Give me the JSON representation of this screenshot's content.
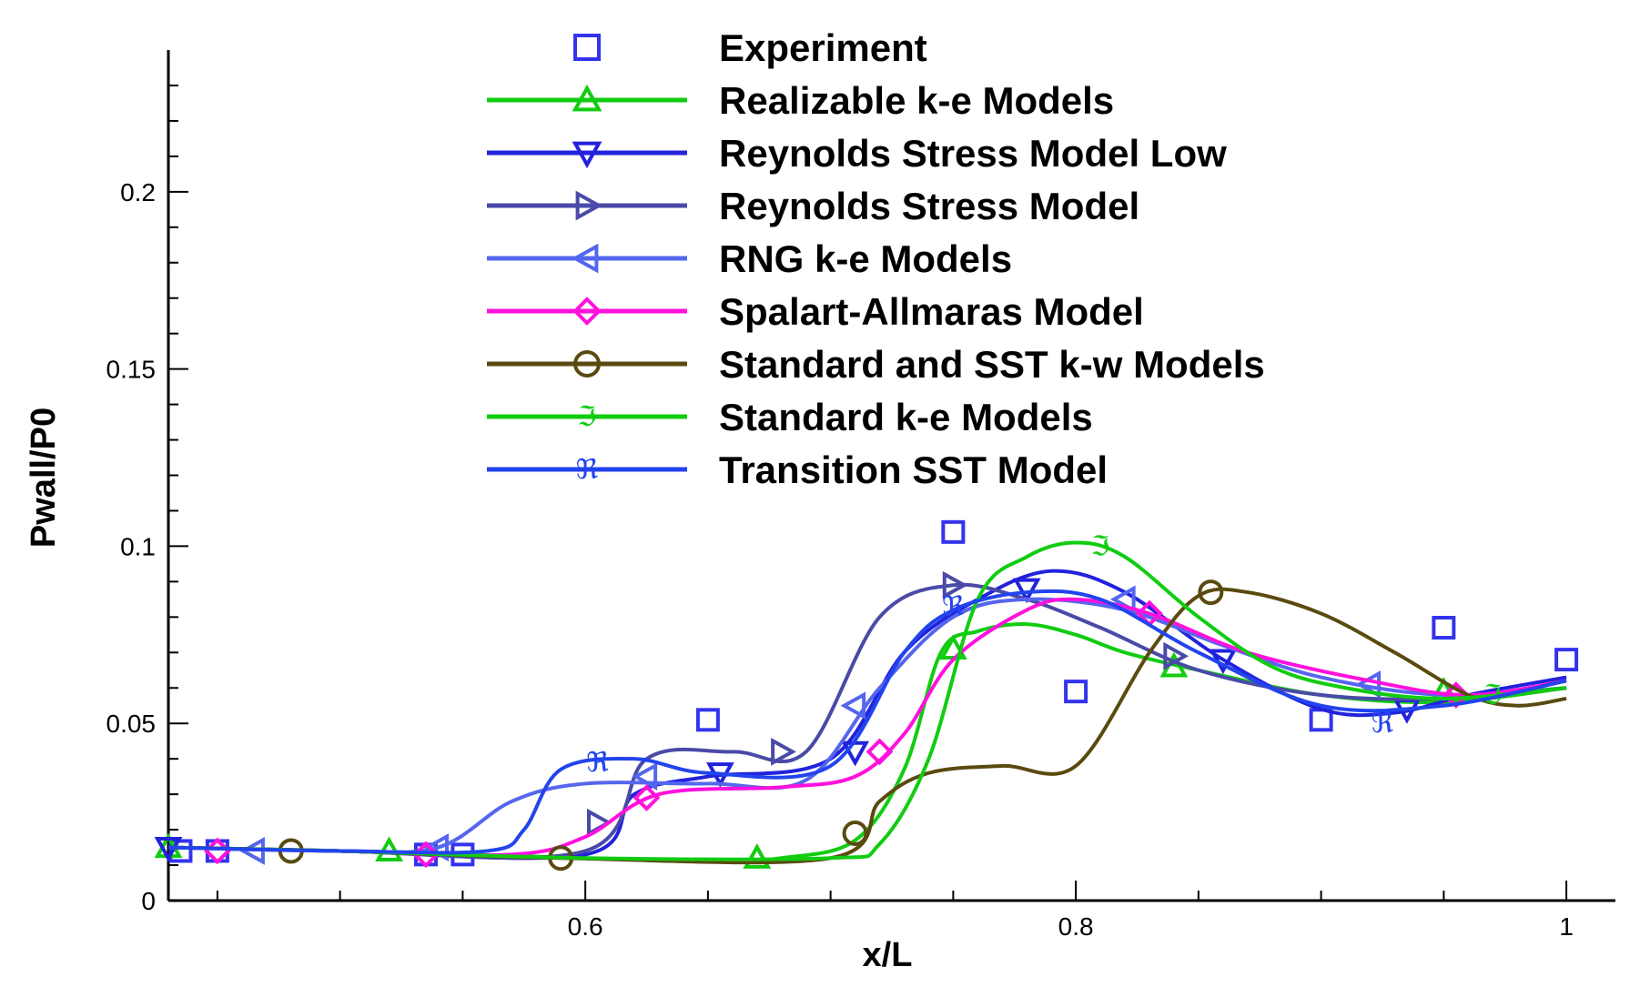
{
  "chart_data": {
    "type": "line",
    "xlabel": "x/L",
    "ylabel": "Pwall/P0",
    "xlim": [
      0.43,
      1.02
    ],
    "ylim": [
      0,
      0.24
    ],
    "x_ticks": [
      0.6,
      0.8,
      1
    ],
    "x_tick_labels": [
      "0.6",
      "0.8",
      "1"
    ],
    "y_ticks": [
      0,
      0.05,
      0.1,
      0.15,
      0.2
    ],
    "y_tick_labels": [
      "0",
      "0.05",
      "0.1",
      "0.15",
      "0.2"
    ],
    "legend_position": "top-center",
    "grid": false,
    "series": [
      {
        "name": "Experiment",
        "color": "#3333ee",
        "marker": "square",
        "line": false,
        "x": [
          0.435,
          0.45,
          0.535,
          0.55,
          0.65,
          0.75,
          0.8,
          0.9,
          0.95,
          1.0
        ],
        "y": [
          0.014,
          0.014,
          0.013,
          0.013,
          0.051,
          0.104,
          0.059,
          0.051,
          0.077,
          0.068
        ]
      },
      {
        "name": "Realizable k-e  Models",
        "color": "#11cc11",
        "marker": "triangle-up",
        "x": [
          0.43,
          0.5,
          0.6,
          0.65,
          0.68,
          0.71,
          0.73,
          0.745,
          0.76,
          0.78,
          0.8,
          0.82,
          0.85,
          0.9,
          0.95,
          1.0
        ],
        "y": [
          0.015,
          0.014,
          0.012,
          0.011,
          0.012,
          0.017,
          0.037,
          0.07,
          0.076,
          0.078,
          0.075,
          0.07,
          0.065,
          0.058,
          0.056,
          0.06
        ],
        "marker_x": [
          0.43,
          0.52,
          0.67,
          0.75,
          0.84,
          0.95
        ],
        "marker_y": [
          0.015,
          0.014,
          0.012,
          0.071,
          0.066,
          0.059
        ]
      },
      {
        "name": "Reynolds Stress Model Low",
        "color": "#2222dd",
        "marker": "triangle-down",
        "x": [
          0.43,
          0.5,
          0.6,
          0.62,
          0.65,
          0.7,
          0.73,
          0.76,
          0.79,
          0.82,
          0.86,
          0.9,
          0.93,
          0.96,
          1.0
        ],
        "y": [
          0.015,
          0.014,
          0.013,
          0.03,
          0.035,
          0.04,
          0.07,
          0.085,
          0.093,
          0.087,
          0.068,
          0.054,
          0.053,
          0.058,
          0.063
        ],
        "marker_x": [
          0.43,
          0.655,
          0.71,
          0.78,
          0.86,
          0.935
        ],
        "marker_y": [
          0.015,
          0.036,
          0.042,
          0.088,
          0.068,
          0.054
        ]
      },
      {
        "name": "Reynolds Stress Model",
        "color": "#4a4aa8",
        "marker": "triangle-right",
        "x": [
          0.43,
          0.5,
          0.6,
          0.625,
          0.66,
          0.69,
          0.72,
          0.75,
          0.78,
          0.81,
          0.85,
          0.9,
          0.95,
          1.0
        ],
        "y": [
          0.015,
          0.014,
          0.014,
          0.04,
          0.042,
          0.042,
          0.08,
          0.089,
          0.085,
          0.077,
          0.065,
          0.058,
          0.057,
          0.06
        ],
        "marker_x": [
          0.605,
          0.68,
          0.75,
          0.84
        ],
        "marker_y": [
          0.022,
          0.042,
          0.089,
          0.069
        ]
      },
      {
        "name": "RNG k-e Models",
        "color": "#5566ee",
        "marker": "triangle-left",
        "x": [
          0.43,
          0.5,
          0.54,
          0.57,
          0.6,
          0.65,
          0.69,
          0.72,
          0.75,
          0.78,
          0.82,
          0.86,
          0.9,
          0.95,
          1.0
        ],
        "y": [
          0.015,
          0.014,
          0.015,
          0.028,
          0.033,
          0.033,
          0.034,
          0.06,
          0.08,
          0.085,
          0.082,
          0.072,
          0.063,
          0.058,
          0.06
        ],
        "marker_x": [
          0.465,
          0.54,
          0.625,
          0.71,
          0.82,
          0.92
        ],
        "marker_y": [
          0.014,
          0.015,
          0.035,
          0.055,
          0.085,
          0.061
        ]
      },
      {
        "name": "Spalart-Allmaras Model",
        "color": "#ff11dd",
        "marker": "diamond",
        "x": [
          0.43,
          0.5,
          0.57,
          0.6,
          0.63,
          0.68,
          0.71,
          0.73,
          0.75,
          0.78,
          0.8,
          0.83,
          0.87,
          0.92,
          0.96,
          1.0
        ],
        "y": [
          0.015,
          0.014,
          0.013,
          0.018,
          0.03,
          0.032,
          0.035,
          0.047,
          0.068,
          0.082,
          0.085,
          0.081,
          0.07,
          0.062,
          0.058,
          0.062
        ],
        "marker_x": [
          0.45,
          0.535,
          0.625,
          0.72,
          0.83,
          0.955
        ],
        "marker_y": [
          0.014,
          0.013,
          0.029,
          0.042,
          0.081,
          0.058
        ]
      },
      {
        "name": "Standard and SST k-w  Models",
        "color": "#5a4a10",
        "marker": "circle",
        "x": [
          0.43,
          0.5,
          0.59,
          0.7,
          0.72,
          0.74,
          0.77,
          0.8,
          0.83,
          0.85,
          0.87,
          0.9,
          0.93,
          0.96,
          0.98,
          1.0
        ],
        "y": [
          0.015,
          0.014,
          0.012,
          0.012,
          0.028,
          0.036,
          0.038,
          0.038,
          0.07,
          0.086,
          0.087,
          0.081,
          0.07,
          0.058,
          0.055,
          0.057
        ],
        "marker_x": [
          0.48,
          0.59,
          0.71,
          0.855
        ],
        "marker_y": [
          0.014,
          0.012,
          0.019,
          0.087
        ]
      },
      {
        "name": "Standard k-e Models",
        "color": "#11cc11",
        "marker": "glyph-S",
        "x": [
          0.43,
          0.5,
          0.6,
          0.7,
          0.72,
          0.74,
          0.76,
          0.78,
          0.8,
          0.82,
          0.85,
          0.88,
          0.91,
          0.95,
          1.0
        ],
        "y": [
          0.015,
          0.014,
          0.012,
          0.012,
          0.016,
          0.04,
          0.085,
          0.097,
          0.101,
          0.097,
          0.08,
          0.066,
          0.06,
          0.057,
          0.06
        ],
        "marker_x": [
          0.81,
          0.97
        ],
        "marker_y": [
          0.1,
          0.058
        ]
      },
      {
        "name": "Transition SST Model",
        "color": "#2244ee",
        "marker": "glyph-R",
        "x": [
          0.43,
          0.5,
          0.56,
          0.575,
          0.59,
          0.62,
          0.65,
          0.7,
          0.73,
          0.75,
          0.78,
          0.81,
          0.85,
          0.9,
          0.95,
          1.0
        ],
        "y": [
          0.015,
          0.014,
          0.014,
          0.02,
          0.037,
          0.04,
          0.036,
          0.038,
          0.07,
          0.082,
          0.087,
          0.085,
          0.07,
          0.055,
          0.055,
          0.062
        ],
        "marker_x": [
          0.605,
          0.75,
          0.925
        ],
        "marker_y": [
          0.039,
          0.083,
          0.05
        ]
      }
    ]
  }
}
